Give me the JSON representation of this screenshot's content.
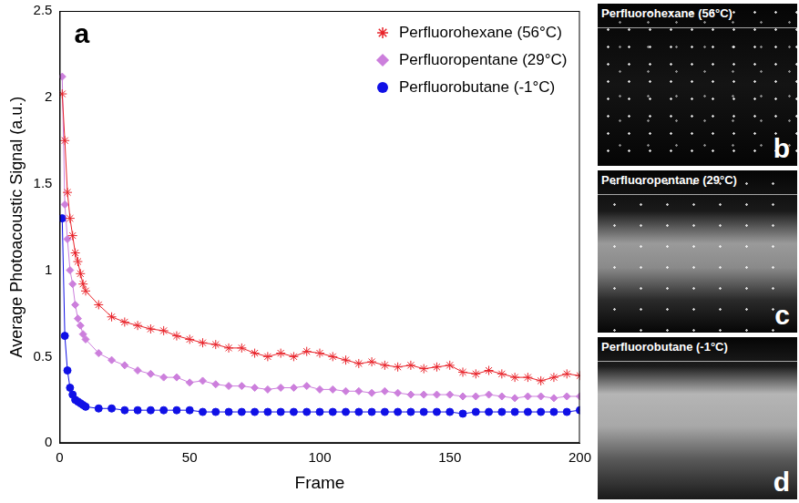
{
  "chart_data": {
    "type": "line",
    "annotations": [
      "a"
    ],
    "x_label": "Frame",
    "y_label": "Average Photoacoustic Signal (a.u.)",
    "x": [
      1,
      2,
      3,
      4,
      5,
      6,
      7,
      8,
      9,
      10,
      15,
      20,
      25,
      30,
      35,
      40,
      45,
      50,
      55,
      60,
      65,
      70,
      75,
      80,
      85,
      90,
      95,
      100,
      105,
      110,
      115,
      120,
      125,
      130,
      135,
      140,
      145,
      150,
      155,
      160,
      165,
      170,
      175,
      180,
      185,
      190,
      195,
      200
    ],
    "series": [
      {
        "name": "Perfluorohexane (56°C)",
        "color": "#e8232a",
        "marker": "star",
        "line_style": "solid",
        "values": [
          2.02,
          1.75,
          1.45,
          1.3,
          1.2,
          1.1,
          1.05,
          0.98,
          0.92,
          0.88,
          0.8,
          0.73,
          0.7,
          0.68,
          0.66,
          0.65,
          0.62,
          0.6,
          0.58,
          0.57,
          0.55,
          0.55,
          0.52,
          0.5,
          0.52,
          0.5,
          0.53,
          0.52,
          0.5,
          0.48,
          0.46,
          0.47,
          0.45,
          0.44,
          0.45,
          0.43,
          0.44,
          0.45,
          0.41,
          0.4,
          0.42,
          0.4,
          0.38,
          0.38,
          0.36,
          0.38,
          0.4,
          0.39
        ]
      },
      {
        "name": "Perfluoropentane (29°C)",
        "color": "#cc7fdc",
        "marker": "diamond",
        "line_style": "solid",
        "values": [
          2.12,
          1.38,
          1.18,
          1.0,
          0.92,
          0.8,
          0.72,
          0.68,
          0.63,
          0.6,
          0.52,
          0.48,
          0.45,
          0.42,
          0.4,
          0.38,
          0.38,
          0.35,
          0.36,
          0.34,
          0.33,
          0.33,
          0.32,
          0.31,
          0.32,
          0.32,
          0.33,
          0.31,
          0.31,
          0.3,
          0.3,
          0.29,
          0.3,
          0.29,
          0.28,
          0.28,
          0.28,
          0.28,
          0.27,
          0.27,
          0.28,
          0.27,
          0.26,
          0.27,
          0.27,
          0.26,
          0.27,
          0.27
        ]
      },
      {
        "name": "Perfluorobutane (-1°C)",
        "color": "#1010e6",
        "marker": "circle",
        "line_style": "solid",
        "values": [
          1.3,
          0.62,
          0.42,
          0.32,
          0.28,
          0.25,
          0.24,
          0.23,
          0.22,
          0.21,
          0.2,
          0.2,
          0.19,
          0.19,
          0.19,
          0.19,
          0.19,
          0.19,
          0.18,
          0.18,
          0.18,
          0.18,
          0.18,
          0.18,
          0.18,
          0.18,
          0.18,
          0.18,
          0.18,
          0.18,
          0.18,
          0.18,
          0.18,
          0.18,
          0.18,
          0.18,
          0.18,
          0.18,
          0.17,
          0.18,
          0.18,
          0.18,
          0.18,
          0.18,
          0.18,
          0.18,
          0.18,
          0.19
        ]
      }
    ],
    "xlim": [
      0,
      200
    ],
    "xticks": [
      0,
      50,
      100,
      150,
      200
    ],
    "ylim": [
      0,
      2.5
    ],
    "yticks": [
      0,
      0.5,
      1,
      1.5,
      2,
      2.5
    ],
    "grid": false,
    "legend": "upper right"
  },
  "images": [
    {
      "title": "Perfluorohexane (56°C)",
      "label": "b"
    },
    {
      "title": "Perfluoropentane (29°C)",
      "label": "c"
    },
    {
      "title": "Perfluorobutane (-1°C)",
      "label": "d"
    }
  ]
}
